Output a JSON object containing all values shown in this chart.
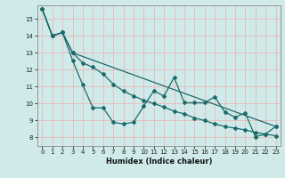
{
  "title": "",
  "xlabel": "Humidex (Indice chaleur)",
  "bg_color": "#d0eaea",
  "grid_color": "#e8b8b8",
  "line_color": "#1a6b6b",
  "xlim": [
    -0.5,
    23.5
  ],
  "ylim": [
    7.5,
    15.8
  ],
  "xticks": [
    0,
    1,
    2,
    3,
    4,
    5,
    6,
    7,
    8,
    9,
    10,
    11,
    12,
    13,
    14,
    15,
    16,
    17,
    18,
    19,
    20,
    21,
    22,
    23
  ],
  "yticks": [
    8,
    9,
    10,
    11,
    12,
    13,
    14,
    15
  ],
  "line1_x": [
    0,
    1,
    2,
    3,
    4,
    5,
    6,
    7,
    8,
    9,
    10,
    11,
    12,
    13,
    14,
    15,
    16,
    17,
    18,
    19,
    20,
    21,
    22,
    23
  ],
  "line1_y": [
    15.6,
    14.0,
    14.2,
    12.55,
    11.1,
    9.75,
    9.75,
    8.9,
    8.8,
    8.9,
    9.85,
    10.75,
    10.45,
    11.55,
    10.05,
    10.05,
    10.05,
    10.4,
    9.5,
    9.2,
    9.45,
    8.05,
    8.2,
    8.65
  ],
  "line2_x": [
    0,
    1,
    2,
    3,
    23
  ],
  "line2_y": [
    15.6,
    14.0,
    14.2,
    13.0,
    8.65
  ],
  "line3_x": [
    0,
    1,
    2,
    3,
    4,
    5,
    6,
    7,
    8,
    9,
    10,
    11,
    12,
    13,
    14,
    15,
    16,
    17,
    18,
    19,
    20,
    21,
    22,
    23
  ],
  "line3_y": [
    15.6,
    14.0,
    14.2,
    13.0,
    12.4,
    12.15,
    11.75,
    11.15,
    10.75,
    10.45,
    10.2,
    10.0,
    9.8,
    9.55,
    9.4,
    9.15,
    9.0,
    8.8,
    8.65,
    8.55,
    8.45,
    8.3,
    8.2,
    8.1
  ]
}
